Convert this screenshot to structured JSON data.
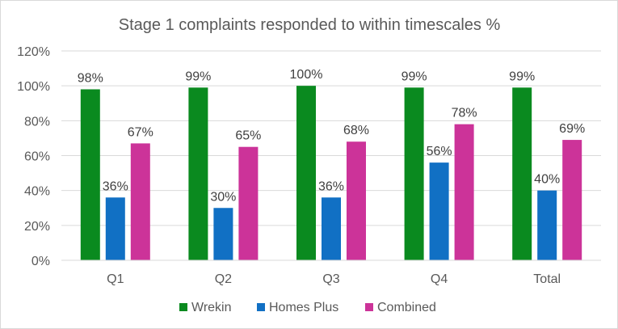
{
  "chart_data": {
    "type": "bar",
    "title": "Stage 1 complaints responded to within timescales %",
    "categories": [
      "Q1",
      "Q2",
      "Q3",
      "Q4",
      "Total"
    ],
    "series": [
      {
        "name": "Wrekin",
        "color": "#0a8a1f",
        "values": [
          98,
          99,
          100,
          99,
          99
        ],
        "labels": [
          "98%",
          "99%",
          "100%",
          "99%",
          "99%"
        ]
      },
      {
        "name": "Homes Plus",
        "color": "#1170c4",
        "values": [
          36,
          30,
          36,
          56,
          40
        ],
        "labels": [
          "36%",
          "30%",
          "36%",
          "56%",
          "40%"
        ]
      },
      {
        "name": "Combined",
        "color": "#cc3399",
        "values": [
          67,
          65,
          68,
          78,
          69
        ],
        "labels": [
          "67%",
          "65%",
          "68%",
          "78%",
          "69%"
        ]
      }
    ],
    "ylim": [
      0,
      120
    ],
    "yticks": [
      0,
      20,
      40,
      60,
      80,
      100,
      120
    ],
    "ytick_labels": [
      "0%",
      "20%",
      "40%",
      "60%",
      "80%",
      "100%",
      "120%"
    ],
    "gridlines": true,
    "legend_position": "bottom"
  }
}
